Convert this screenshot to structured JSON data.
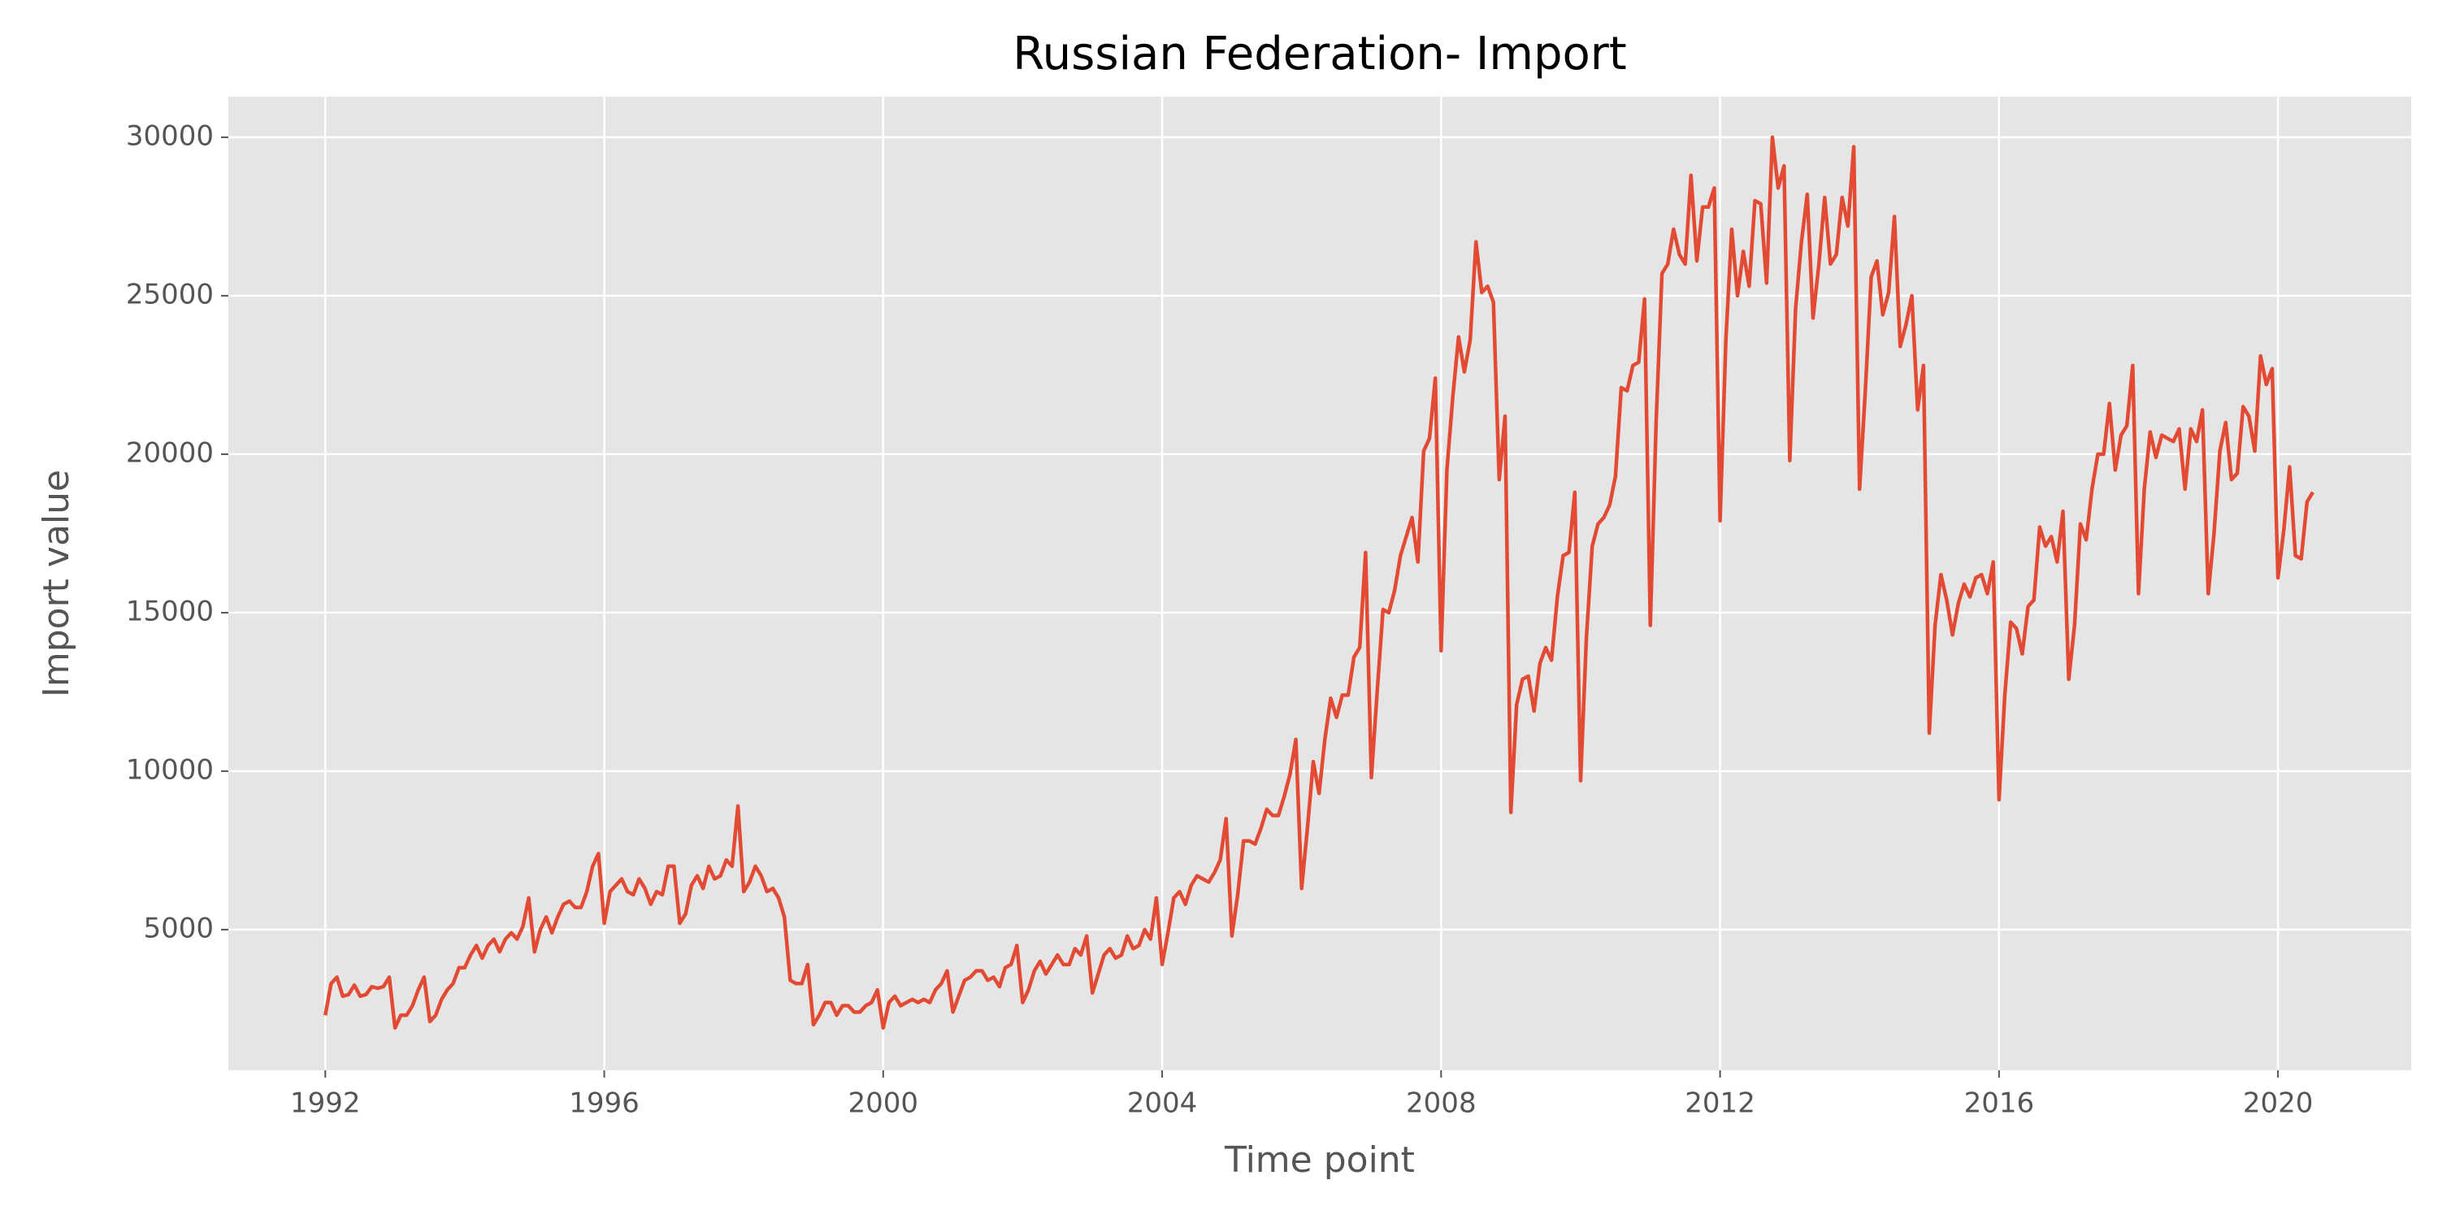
{
  "chart_data": {
    "type": "line",
    "title": "Russian Federation- Import",
    "x_label": "Time point",
    "y_label": "Import value",
    "color": "#e24a33",
    "grid": true,
    "xlim": [
      1990.61,
      2021.91
    ],
    "ylim": [
      562,
      31280
    ],
    "xticks": [
      1992,
      1996,
      2000,
      2004,
      2008,
      2012,
      2016,
      2020
    ],
    "yticks": [
      5000,
      10000,
      15000,
      20000,
      25000,
      30000
    ],
    "x": [
      1992,
      1992.083,
      1992.167,
      1992.25,
      1992.333,
      1992.417,
      1992.5,
      1992.583,
      1992.667,
      1992.75,
      1992.833,
      1992.917,
      1993,
      1993.083,
      1993.167,
      1993.25,
      1993.333,
      1993.417,
      1993.5,
      1993.583,
      1993.667,
      1993.75,
      1993.833,
      1993.917,
      1994,
      1994.083,
      1994.167,
      1994.25,
      1994.333,
      1994.417,
      1994.5,
      1994.583,
      1994.667,
      1994.75,
      1994.833,
      1994.917,
      1995,
      1995.083,
      1995.167,
      1995.25,
      1995.333,
      1995.417,
      1995.5,
      1995.583,
      1995.667,
      1995.75,
      1995.833,
      1995.917,
      1996,
      1996.083,
      1996.167,
      1996.25,
      1996.333,
      1996.417,
      1996.5,
      1996.583,
      1996.667,
      1996.75,
      1996.833,
      1996.917,
      1997,
      1997.083,
      1997.167,
      1997.25,
      1997.333,
      1997.417,
      1997.5,
      1997.583,
      1997.667,
      1997.75,
      1997.833,
      1997.917,
      1998,
      1998.083,
      1998.167,
      1998.25,
      1998.333,
      1998.417,
      1998.5,
      1998.583,
      1998.667,
      1998.75,
      1998.833,
      1998.917,
      1999,
      1999.083,
      1999.167,
      1999.25,
      1999.333,
      1999.417,
      1999.5,
      1999.583,
      1999.667,
      1999.75,
      1999.833,
      1999.917,
      2000,
      2000.083,
      2000.167,
      2000.25,
      2000.333,
      2000.417,
      2000.5,
      2000.583,
      2000.667,
      2000.75,
      2000.833,
      2000.917,
      2001,
      2001.083,
      2001.167,
      2001.25,
      2001.333,
      2001.417,
      2001.5,
      2001.583,
      2001.667,
      2001.75,
      2001.833,
      2001.917,
      2002,
      2002.083,
      2002.167,
      2002.25,
      2002.333,
      2002.417,
      2002.5,
      2002.583,
      2002.667,
      2002.75,
      2002.833,
      2002.917,
      2003,
      2003.083,
      2003.167,
      2003.25,
      2003.333,
      2003.417,
      2003.5,
      2003.583,
      2003.667,
      2003.75,
      2003.833,
      2003.917,
      2004,
      2004.083,
      2004.167,
      2004.25,
      2004.333,
      2004.417,
      2004.5,
      2004.583,
      2004.667,
      2004.75,
      2004.833,
      2004.917,
      2005,
      2005.083,
      2005.167,
      2005.25,
      2005.333,
      2005.417,
      2005.5,
      2005.583,
      2005.667,
      2005.75,
      2005.833,
      2005.917,
      2006,
      2006.083,
      2006.167,
      2006.25,
      2006.333,
      2006.417,
      2006.5,
      2006.583,
      2006.667,
      2006.75,
      2006.833,
      2006.917,
      2007,
      2007.083,
      2007.167,
      2007.25,
      2007.333,
      2007.417,
      2007.5,
      2007.583,
      2007.667,
      2007.75,
      2007.833,
      2007.917,
      2008,
      2008.083,
      2008.167,
      2008.25,
      2008.333,
      2008.417,
      2008.5,
      2008.583,
      2008.667,
      2008.75,
      2008.833,
      2008.917,
      2009,
      2009.083,
      2009.167,
      2009.25,
      2009.333,
      2009.417,
      2009.5,
      2009.583,
      2009.667,
      2009.75,
      2009.833,
      2009.917,
      2010,
      2010.083,
      2010.167,
      2010.25,
      2010.333,
      2010.417,
      2010.5,
      2010.583,
      2010.667,
      2010.75,
      2010.833,
      2010.917,
      2011,
      2011.083,
      2011.167,
      2011.25,
      2011.333,
      2011.417,
      2011.5,
      2011.583,
      2011.667,
      2011.75,
      2011.833,
      2011.917,
      2012,
      2012.083,
      2012.167,
      2012.25,
      2012.333,
      2012.417,
      2012.5,
      2012.583,
      2012.667,
      2012.75,
      2012.833,
      2012.917,
      2013,
      2013.083,
      2013.167,
      2013.25,
      2013.333,
      2013.417,
      2013.5,
      2013.583,
      2013.667,
      2013.75,
      2013.833,
      2013.917,
      2014,
      2014.083,
      2014.167,
      2014.25,
      2014.333,
      2014.417,
      2014.5,
      2014.583,
      2014.667,
      2014.75,
      2014.833,
      2014.917,
      2015,
      2015.083,
      2015.167,
      2015.25,
      2015.333,
      2015.417,
      2015.5,
      2015.583,
      2015.667,
      2015.75,
      2015.833,
      2015.917,
      2016,
      2016.083,
      2016.167,
      2016.25,
      2016.333,
      2016.417,
      2016.5,
      2016.583,
      2016.667,
      2016.75,
      2016.833,
      2016.917,
      2017,
      2017.083,
      2017.167,
      2017.25,
      2017.333,
      2017.417,
      2017.5,
      2017.583,
      2017.667,
      2017.75,
      2017.833,
      2017.917,
      2018,
      2018.083,
      2018.167,
      2018.25,
      2018.333,
      2018.417,
      2018.5,
      2018.583,
      2018.667,
      2018.75,
      2018.833,
      2018.917,
      2019,
      2019.083,
      2019.167,
      2019.25,
      2019.333,
      2019.417,
      2019.5,
      2019.583,
      2019.667,
      2019.75,
      2019.833,
      2019.917,
      2020,
      2020.083,
      2020.167,
      2020.25,
      2020.333,
      2020.417,
      2020.5
    ],
    "values": [
      2300,
      3300,
      3500,
      2900,
      2950,
      3250,
      2900,
      2950,
      3200,
      3150,
      3200,
      3500,
      1900,
      2300,
      2300,
      2600,
      3100,
      3500,
      2100,
      2300,
      2800,
      3100,
      3300,
      3800,
      3800,
      4200,
      4500,
      4100,
      4500,
      4700,
      4300,
      4700,
      4900,
      4700,
      5100,
      6000,
      4300,
      5000,
      5400,
      4900,
      5400,
      5800,
      5900,
      5700,
      5700,
      6200,
      7000,
      7400,
      5200,
      6200,
      6400,
      6600,
      6200,
      6100,
      6600,
      6300,
      5800,
      6200,
      6100,
      7000,
      7000,
      5200,
      5500,
      6400,
      6700,
      6300,
      7000,
      6600,
      6700,
      7200,
      7000,
      8900,
      6200,
      6500,
      7000,
      6700,
      6200,
      6300,
      6000,
      5400,
      3400,
      3300,
      3300,
      3900,
      2000,
      2300,
      2700,
      2700,
      2300,
      2600,
      2600,
      2400,
      2400,
      2600,
      2700,
      3100,
      1900,
      2700,
      2900,
      2600,
      2700,
      2800,
      2700,
      2800,
      2700,
      3100,
      3300,
      3700,
      2400,
      2900,
      3400,
      3500,
      3700,
      3700,
      3400,
      3500,
      3200,
      3800,
      3900,
      4500,
      2700,
      3100,
      3700,
      4000,
      3600,
      3900,
      4200,
      3900,
      3900,
      4400,
      4200,
      4800,
      3000,
      3600,
      4200,
      4400,
      4100,
      4200,
      4800,
      4400,
      4500,
      5000,
      4700,
      6000,
      3900,
      4900,
      6000,
      6200,
      5800,
      6400,
      6700,
      6600,
      6500,
      6800,
      7200,
      8500,
      4800,
      6100,
      7800,
      7800,
      7700,
      8200,
      8800,
      8600,
      8600,
      9200,
      9900,
      11000,
      6300,
      8200,
      10300,
      9300,
      11000,
      12300,
      11700,
      12400,
      12400,
      13600,
      13900,
      16900,
      9800,
      12500,
      15100,
      15000,
      15700,
      16800,
      17400,
      18000,
      16600,
      20100,
      20500,
      22400,
      13800,
      19500,
      21800,
      23700,
      22600,
      23600,
      26700,
      25100,
      25300,
      24800,
      19200,
      21200,
      8700,
      12100,
      12900,
      13000,
      11900,
      13400,
      13900,
      13500,
      15500,
      16800,
      16900,
      18800,
      9700,
      14200,
      17100,
      17800,
      18000,
      18400,
      19300,
      22100,
      22000,
      22800,
      22900,
      24900,
      14600,
      21000,
      25700,
      26000,
      27100,
      26300,
      26000,
      28800,
      26100,
      27800,
      27800,
      28400,
      17900,
      23600,
      27100,
      25000,
      26400,
      25300,
      28000,
      27900,
      25400,
      30000,
      28400,
      29100,
      19800,
      24600,
      26700,
      28200,
      24300,
      26000,
      28100,
      26000,
      26300,
      28100,
      27200,
      29700,
      18900,
      22000,
      25600,
      26100,
      24400,
      25100,
      27500,
      23400,
      24100,
      25000,
      21400,
      22800,
      11200,
      14600,
      16200,
      15400,
      14300,
      15300,
      15900,
      15500,
      16100,
      16200,
      15600,
      16600,
      9100,
      12400,
      14700,
      14500,
      13700,
      15200,
      15400,
      17700,
      17100,
      17400,
      16600,
      18200,
      12900,
      14600,
      17800,
      17300,
      18900,
      20000,
      20000,
      21600,
      19500,
      20600,
      20900,
      22800,
      15600,
      18900,
      20700,
      19900,
      20600,
      20500,
      20400,
      20800,
      18900,
      20800,
      20400,
      21400,
      15600,
      17500,
      20100,
      21000,
      19200,
      19400,
      21500,
      21200,
      20100,
      23100,
      22200,
      22700,
      16100,
      17600,
      19600,
      16800,
      16700,
      18500,
      18800
    ]
  }
}
